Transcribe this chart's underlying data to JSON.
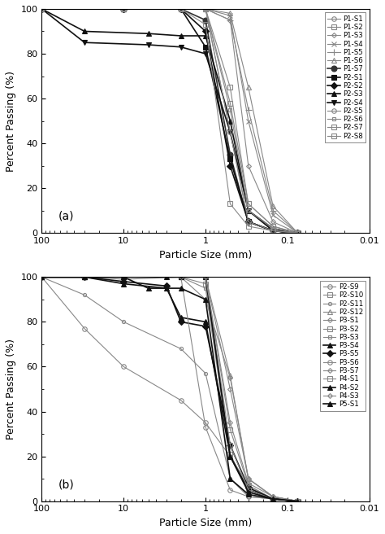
{
  "panel_a": {
    "label": "(a)",
    "series": [
      {
        "name": "P1-S1",
        "color": "#888888",
        "marker": "o",
        "mfc": "none",
        "markersize": 4,
        "linewidth": 0.8,
        "x": [
          100,
          10,
          1.0,
          0.5,
          0.3,
          0.15,
          0.075
        ],
        "y": [
          100,
          100,
          100,
          45,
          5,
          1,
          0
        ]
      },
      {
        "name": "P1-S2",
        "color": "#888888",
        "marker": "s",
        "mfc": "none",
        "markersize": 4,
        "linewidth": 0.8,
        "x": [
          100,
          10,
          1.0,
          0.5,
          0.3,
          0.15,
          0.075
        ],
        "y": [
          100,
          100,
          100,
          58,
          13,
          3,
          0
        ]
      },
      {
        "name": "P1-S3",
        "color": "#888888",
        "marker": "D",
        "mfc": "none",
        "markersize": 3,
        "linewidth": 0.8,
        "x": [
          100,
          10,
          1.0,
          0.5,
          0.3,
          0.15,
          0.075
        ],
        "y": [
          100,
          100,
          100,
          95,
          30,
          5,
          0
        ]
      },
      {
        "name": "P1-S4",
        "color": "#888888",
        "marker": "x",
        "mfc": "#888888",
        "markersize": 5,
        "linewidth": 0.8,
        "x": [
          100,
          10,
          1.0,
          0.5,
          0.3,
          0.15,
          0.075
        ],
        "y": [
          100,
          100,
          100,
          97,
          50,
          8,
          0
        ]
      },
      {
        "name": "P1-S5",
        "color": "#888888",
        "marker": "+",
        "mfc": "#888888",
        "markersize": 6,
        "linewidth": 0.8,
        "x": [
          100,
          10,
          1.0,
          0.5,
          0.3,
          0.15,
          0.075
        ],
        "y": [
          100,
          100,
          100,
          95,
          55,
          10,
          0
        ]
      },
      {
        "name": "P1-S6",
        "color": "#888888",
        "marker": "^",
        "mfc": "none",
        "markersize": 4,
        "linewidth": 0.8,
        "x": [
          100,
          10,
          1.0,
          0.5,
          0.3,
          0.15,
          0.075
        ],
        "y": [
          100,
          100,
          100,
          98,
          65,
          12,
          0
        ]
      },
      {
        "name": "P1-S7",
        "color": "#333333",
        "marker": "o",
        "mfc": "#333333",
        "markersize": 5,
        "linewidth": 1.2,
        "x": [
          100,
          10,
          2.0,
          1.0,
          0.5,
          0.3,
          0.15,
          0.075
        ],
        "y": [
          100,
          100,
          100,
          95,
          35,
          5,
          1,
          0
        ]
      },
      {
        "name": "P2-S1",
        "color": "#111111",
        "marker": "s",
        "mfc": "#111111",
        "markersize": 5,
        "linewidth": 1.2,
        "x": [
          100,
          10,
          2.0,
          1.0,
          0.5,
          0.3,
          0.15,
          0.075
        ],
        "y": [
          100,
          100,
          100,
          83,
          33,
          5,
          1,
          0
        ]
      },
      {
        "name": "P2-S2",
        "color": "#111111",
        "marker": "D",
        "mfc": "#111111",
        "markersize": 4,
        "linewidth": 1.2,
        "x": [
          100,
          10,
          2.0,
          1.0,
          0.5,
          0.3,
          0.15,
          0.075
        ],
        "y": [
          100,
          100,
          100,
          90,
          30,
          5,
          1,
          0
        ]
      },
      {
        "name": "P2-S3",
        "color": "#111111",
        "marker": "^",
        "mfc": "#111111",
        "markersize": 5,
        "linewidth": 1.2,
        "x": [
          100,
          30,
          5.0,
          2.0,
          1.0,
          0.5,
          0.3,
          0.15,
          0.075
        ],
        "y": [
          100,
          90,
          89,
          88,
          88,
          50,
          10,
          2,
          0
        ]
      },
      {
        "name": "P2-S4",
        "color": "#111111",
        "marker": "v",
        "mfc": "#111111",
        "markersize": 5,
        "linewidth": 1.2,
        "x": [
          100,
          30,
          5.0,
          2.0,
          1.0,
          0.5,
          0.3,
          0.15,
          0.075
        ],
        "y": [
          100,
          85,
          84,
          83,
          80,
          45,
          10,
          1,
          0
        ]
      },
      {
        "name": "P2-S5",
        "color": "#888888",
        "marker": "o",
        "mfc": "none",
        "markersize": 4,
        "linewidth": 0.8,
        "x": [
          100,
          10,
          2.0,
          1.0,
          0.5,
          0.3,
          0.15,
          0.075
        ],
        "y": [
          100,
          100,
          100,
          100,
          45,
          5,
          1,
          0
        ]
      },
      {
        "name": "P2-S6",
        "color": "#888888",
        "marker": "s",
        "mfc": "none",
        "markersize": 3,
        "linewidth": 0.8,
        "x": [
          100,
          10,
          2.0,
          1.0,
          0.5,
          0.3,
          0.15,
          0.075
        ],
        "y": [
          100,
          100,
          100,
          100,
          55,
          10,
          2,
          0
        ]
      },
      {
        "name": "P2-S7",
        "color": "#888888",
        "marker": "s",
        "mfc": "none",
        "markersize": 4,
        "linewidth": 0.8,
        "x": [
          100,
          10,
          2.0,
          1.0,
          0.5,
          0.3,
          0.15,
          0.075
        ],
        "y": [
          100,
          100,
          100,
          100,
          65,
          13,
          3,
          0
        ]
      },
      {
        "name": "P2-S8",
        "color": "#888888",
        "marker": "s",
        "mfc": "none",
        "markersize": 4,
        "linewidth": 0.8,
        "x": [
          100,
          10,
          2.0,
          1.0,
          0.5,
          0.3,
          0.15,
          0.075
        ],
        "y": [
          100,
          100,
          100,
          93,
          13,
          3,
          1,
          0
        ]
      }
    ]
  },
  "panel_b": {
    "label": "(b)",
    "series": [
      {
        "name": "P2-S9",
        "color": "#888888",
        "marker": "o",
        "mfc": "none",
        "markersize": 4,
        "linewidth": 0.8,
        "x": [
          100,
          30,
          10,
          2.0,
          1.0,
          0.5,
          0.3,
          0.15,
          0.075
        ],
        "y": [
          100,
          77,
          60,
          45,
          35,
          20,
          7,
          1,
          0
        ]
      },
      {
        "name": "P2-S10",
        "color": "#888888",
        "marker": "s",
        "mfc": "none",
        "markersize": 4,
        "linewidth": 0.8,
        "x": [
          100,
          30,
          10,
          2.0,
          1.0,
          0.5,
          0.3,
          0.15,
          0.075
        ],
        "y": [
          100,
          100,
          100,
          100,
          97,
          21,
          5,
          1,
          0
        ]
      },
      {
        "name": "P2-S11",
        "color": "#888888",
        "marker": "o",
        "mfc": "none",
        "markersize": 3,
        "linewidth": 0.8,
        "x": [
          100,
          30,
          10,
          2.0,
          1.0,
          0.5,
          0.3,
          0.15,
          0.075
        ],
        "y": [
          100,
          92,
          80,
          68,
          57,
          10,
          2,
          1,
          0
        ]
      },
      {
        "name": "P2-S12",
        "color": "#888888",
        "marker": "^",
        "mfc": "none",
        "markersize": 4,
        "linewidth": 0.8,
        "x": [
          100,
          30,
          10,
          2.0,
          1.0,
          0.5,
          0.3,
          0.15,
          0.075
        ],
        "y": [
          100,
          100,
          99,
          100,
          100,
          56,
          10,
          2,
          0
        ]
      },
      {
        "name": "P3-S1",
        "color": "#888888",
        "marker": "D",
        "mfc": "none",
        "markersize": 3,
        "linewidth": 0.8,
        "x": [
          100,
          30,
          10,
          2.0,
          1.0,
          0.5,
          0.3,
          0.15,
          0.075
        ],
        "y": [
          100,
          100,
          100,
          100,
          100,
          50,
          10,
          2,
          0
        ]
      },
      {
        "name": "P3-S2",
        "color": "#888888",
        "marker": "s",
        "mfc": "none",
        "markersize": 4,
        "linewidth": 0.8,
        "x": [
          100,
          30,
          10,
          2.0,
          1.0,
          0.5,
          0.3,
          0.15,
          0.075
        ],
        "y": [
          100,
          100,
          100,
          100,
          100,
          32,
          7,
          1,
          0
        ]
      },
      {
        "name": "P3-S3",
        "color": "#888888",
        "marker": "s",
        "mfc": "none",
        "markersize": 3,
        "linewidth": 0.8,
        "x": [
          100,
          30,
          10,
          2.0,
          1.0,
          0.5,
          0.3,
          0.15,
          0.075
        ],
        "y": [
          100,
          100,
          100,
          100,
          95,
          20,
          5,
          1,
          0
        ]
      },
      {
        "name": "P3-S4",
        "color": "#111111",
        "marker": "^",
        "mfc": "#111111",
        "markersize": 5,
        "linewidth": 1.2,
        "x": [
          100,
          30,
          10,
          3.0,
          2.0,
          1.0,
          0.5,
          0.3,
          0.15,
          0.075
        ],
        "y": [
          100,
          100,
          97,
          95,
          82,
          80,
          20,
          5,
          1,
          0
        ]
      },
      {
        "name": "P3-S5",
        "color": "#111111",
        "marker": "D",
        "mfc": "#111111",
        "markersize": 4,
        "linewidth": 1.2,
        "x": [
          100,
          30,
          10,
          3.0,
          2.0,
          1.0,
          0.5,
          0.3,
          0.15,
          0.075
        ],
        "y": [
          100,
          100,
          98,
          96,
          80,
          78,
          25,
          6,
          1,
          0
        ]
      },
      {
        "name": "P3-S6",
        "color": "#888888",
        "marker": "o",
        "mfc": "none",
        "markersize": 4,
        "linewidth": 0.8,
        "x": [
          100,
          30,
          10,
          2.0,
          1.0,
          0.5,
          0.3,
          0.15,
          0.075
        ],
        "y": [
          100,
          100,
          100,
          100,
          33,
          5,
          2,
          1,
          0
        ]
      },
      {
        "name": "P3-S7",
        "color": "#888888",
        "marker": "D",
        "mfc": "none",
        "markersize": 3,
        "linewidth": 0.8,
        "x": [
          100,
          30,
          10,
          2.0,
          1.0,
          0.5,
          0.3,
          0.15,
          0.075
        ],
        "y": [
          100,
          100,
          100,
          100,
          90,
          55,
          10,
          2,
          0
        ]
      },
      {
        "name": "P4-S1",
        "color": "#888888",
        "marker": "s",
        "mfc": "none",
        "markersize": 4,
        "linewidth": 0.8,
        "x": [
          100,
          30,
          10,
          2.0,
          1.0,
          0.5,
          0.3,
          0.15,
          0.075
        ],
        "y": [
          100,
          100,
          100,
          100,
          100,
          25,
          5,
          1,
          0
        ]
      },
      {
        "name": "P4-S2",
        "color": "#111111",
        "marker": "^",
        "mfc": "#111111",
        "markersize": 5,
        "linewidth": 1.2,
        "x": [
          100,
          30,
          10,
          3.0,
          2.0,
          1.0,
          0.5,
          0.3,
          0.15,
          0.075
        ],
        "y": [
          100,
          100,
          100,
          100,
          100,
          100,
          20,
          4,
          1,
          0
        ]
      },
      {
        "name": "P4-S3",
        "color": "#888888",
        "marker": "D",
        "mfc": "none",
        "markersize": 3,
        "linewidth": 0.8,
        "x": [
          100,
          30,
          10,
          2.0,
          1.0,
          0.5,
          0.3,
          0.15,
          0.075
        ],
        "y": [
          100,
          100,
          100,
          100,
          100,
          35,
          8,
          2,
          0
        ]
      },
      {
        "name": "P5-S1",
        "color": "#111111",
        "marker": "^",
        "mfc": "#111111",
        "markersize": 5,
        "linewidth": 1.2,
        "x": [
          100,
          30,
          10,
          5.0,
          2.0,
          1.0,
          0.5,
          0.3,
          0.15,
          0.075
        ],
        "y": [
          100,
          100,
          100,
          95,
          95,
          90,
          10,
          3,
          1,
          0
        ]
      }
    ]
  },
  "xlabel": "Particle Size (mm)",
  "ylabel": "Percent Passing (%)",
  "xlim_left": 100,
  "xlim_right": 0.01,
  "ylim": [
    0,
    100
  ],
  "yticks": [
    0,
    20,
    40,
    60,
    80,
    100
  ],
  "xtick_labels": [
    "100",
    "10",
    "1",
    "0.1",
    "0.01"
  ]
}
